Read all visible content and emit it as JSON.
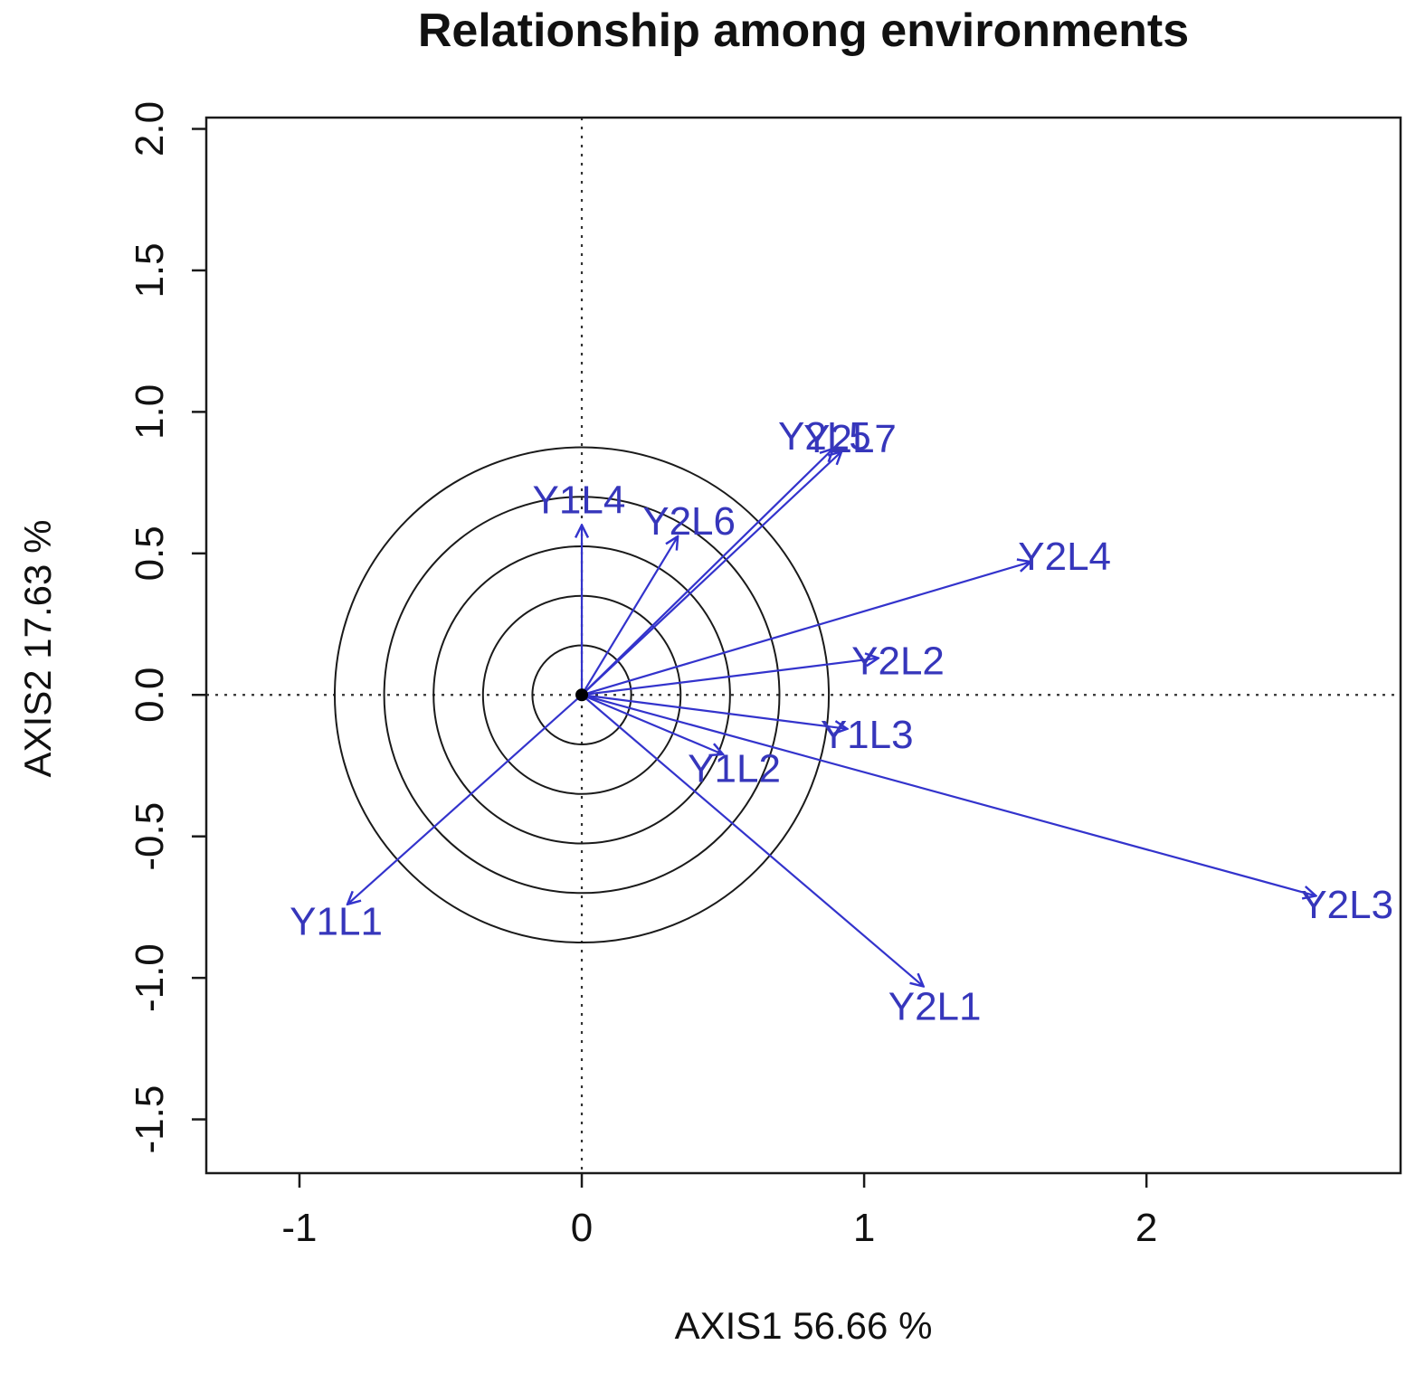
{
  "chart_data": {
    "type": "scatter",
    "subtype": "biplot-environment-vectors",
    "title": "Relationship among environments",
    "xlabel": "AXIS1 56.66 %",
    "ylabel": "AXIS2 17.63 %",
    "xlim": [
      -1.33,
      2.9
    ],
    "ylim": [
      -1.69,
      2.04
    ],
    "grid": false,
    "legend": "none",
    "x_ticks": [
      {
        "value": -1,
        "label": "-1"
      },
      {
        "value": 0,
        "label": "0"
      },
      {
        "value": 1,
        "label": "1"
      },
      {
        "value": 2,
        "label": "2"
      }
    ],
    "y_ticks": [
      {
        "value": -1.5,
        "label": "-1.5"
      },
      {
        "value": -1.0,
        "label": "-1.0"
      },
      {
        "value": -0.5,
        "label": "-0.5"
      },
      {
        "value": 0.0,
        "label": "0.0"
      },
      {
        "value": 0.5,
        "label": "0.5"
      },
      {
        "value": 1.0,
        "label": "1.0"
      },
      {
        "value": 1.5,
        "label": "1.5"
      },
      {
        "value": 2.0,
        "label": "2.0"
      }
    ],
    "reference_lines": {
      "vertical_x": 0,
      "horizontal_y": 0,
      "style": "dotted"
    },
    "origin_dot": {
      "x": 0,
      "y": 0
    },
    "concentric_circle_radii": [
      0.175,
      0.35,
      0.525,
      0.7,
      0.875
    ],
    "vectors": [
      {
        "name": "Y1L1",
        "x": -0.83,
        "y": -0.74,
        "label_x": -0.87,
        "label_y": -0.8
      },
      {
        "name": "Y1L2",
        "x": 0.5,
        "y": -0.21,
        "label_x": 0.54,
        "label_y": -0.26
      },
      {
        "name": "Y1L3",
        "x": 0.94,
        "y": -0.12,
        "label_x": 1.01,
        "label_y": -0.14
      },
      {
        "name": "Y1L4",
        "x": 0.0,
        "y": 0.6,
        "label_x": -0.01,
        "label_y": 0.69
      },
      {
        "name": "Y2L1",
        "x": 1.21,
        "y": -1.03,
        "label_x": 1.25,
        "label_y": -1.1
      },
      {
        "name": "Y2L2",
        "x": 1.05,
        "y": 0.13,
        "label_x": 1.12,
        "label_y": 0.12
      },
      {
        "name": "Y2L3",
        "x": 2.6,
        "y": -0.71,
        "label_x": 2.71,
        "label_y": -0.74
      },
      {
        "name": "Y2L4",
        "x": 1.59,
        "y": 0.47,
        "label_x": 1.71,
        "label_y": 0.49
      },
      {
        "name": "Y2L5",
        "x": 0.89,
        "y": 0.87,
        "label_x": 0.86,
        "label_y": 0.915
      },
      {
        "name": "Y2L6",
        "x": 0.34,
        "y": 0.56,
        "label_x": 0.38,
        "label_y": 0.615
      },
      {
        "name": "Y2L7",
        "x": 0.92,
        "y": 0.86,
        "label_x": 0.95,
        "label_y": 0.905
      }
    ],
    "colors": {
      "vector": "#3333cc",
      "vector_label": "#3636bb",
      "axis": "#1a1a1a",
      "circle": "#1a1a1a",
      "reference": "#333333"
    }
  }
}
